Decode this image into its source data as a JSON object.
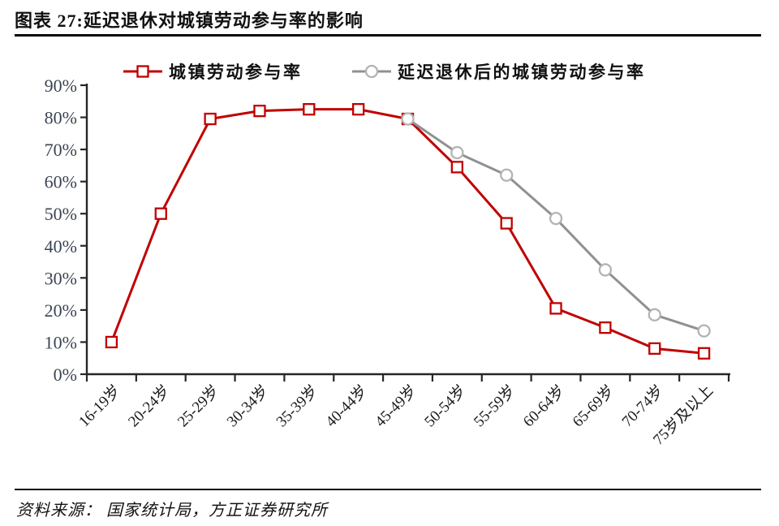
{
  "title": "图表 27:延迟退休对城镇劳动参与率的影响",
  "source": "资料来源： 国家统计局，方正证券研究所",
  "colors": {
    "series_red": "#c00000",
    "series_gray": "#909090",
    "gray_marker_stroke": "#b3b3b3",
    "axis": "#262626",
    "ytick_text": "#3a4454",
    "xtick_text": "#1a1a1a"
  },
  "chart_data": {
    "type": "line",
    "title": "",
    "xlabel": "",
    "ylabel": "",
    "ylim": [
      0,
      90
    ],
    "ytick_step": 10,
    "ytick_labels": [
      "0%",
      "10%",
      "20%",
      "30%",
      "40%",
      "50%",
      "60%",
      "70%",
      "80%",
      "90%"
    ],
    "grid": false,
    "legend_position": "top",
    "categories": [
      "16-19岁",
      "20-24岁",
      "25-29岁",
      "30-34岁",
      "35-39岁",
      "40-44岁",
      "45-49岁",
      "50-54岁",
      "55-59岁",
      "60-64岁",
      "65-69岁",
      "70-74岁",
      "75岁及以上"
    ],
    "series": [
      {
        "name": "城镇劳动参与率",
        "marker": "square",
        "color": "#c00000",
        "start_index": 0,
        "values": [
          10,
          50,
          79.5,
          82,
          82.5,
          82.5,
          79.5,
          64.5,
          47,
          20.5,
          14.5,
          8,
          6.5
        ]
      },
      {
        "name": "延迟退休后的城镇劳动参与率",
        "marker": "circle",
        "color": "#909090",
        "start_index": 6,
        "values": [
          79.5,
          69,
          62,
          48.5,
          32.5,
          18.5,
          13.5
        ]
      }
    ]
  }
}
